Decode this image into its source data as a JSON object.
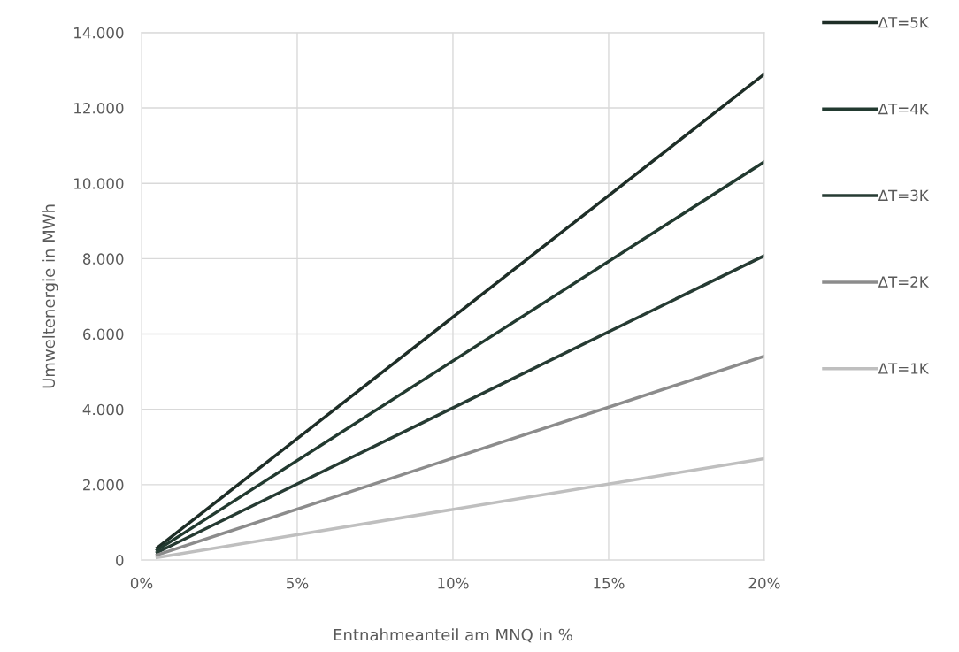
{
  "chart_data": {
    "type": "line",
    "xlabel": "Entnahmeanteil am MNQ in %",
    "ylabel": "Umweltenergie in MWh",
    "x": [
      0.5,
      20
    ],
    "series": [
      {
        "name": "ΔT=5K",
        "color": "#1e2e27",
        "values": [
          322,
          12900
        ]
      },
      {
        "name": "ΔT=4K",
        "color": "#223a30",
        "values": [
          264,
          10570
        ]
      },
      {
        "name": "ΔT=3K",
        "color": "#263b33",
        "values": [
          202,
          8080
        ]
      },
      {
        "name": "ΔT=2K",
        "color": "#8c8c8c",
        "values": [
          135,
          5410
        ]
      },
      {
        "name": "ΔT=1K",
        "color": "#bfbfbf",
        "values": [
          67,
          2690
        ]
      }
    ],
    "xlim": [
      0,
      20
    ],
    "xticks": [
      {
        "value": 0,
        "label": "0%"
      },
      {
        "value": 5,
        "label": "5%"
      },
      {
        "value": 10,
        "label": "10%"
      },
      {
        "value": 15,
        "label": "15%"
      },
      {
        "value": 20,
        "label": "20%"
      }
    ],
    "ylim": [
      0,
      14000
    ],
    "yticks": [
      {
        "value": 0,
        "label": "0"
      },
      {
        "value": 2000,
        "label": "2.000"
      },
      {
        "value": 4000,
        "label": "4.000"
      },
      {
        "value": 6000,
        "label": "6.000"
      },
      {
        "value": 8000,
        "label": "8.000"
      },
      {
        "value": 10000,
        "label": "10.000"
      },
      {
        "value": 12000,
        "label": "12.000"
      },
      {
        "value": 14000,
        "label": "14.000"
      }
    ],
    "grid": true,
    "legend": "right",
    "marker": "none",
    "line_style": "solid"
  }
}
